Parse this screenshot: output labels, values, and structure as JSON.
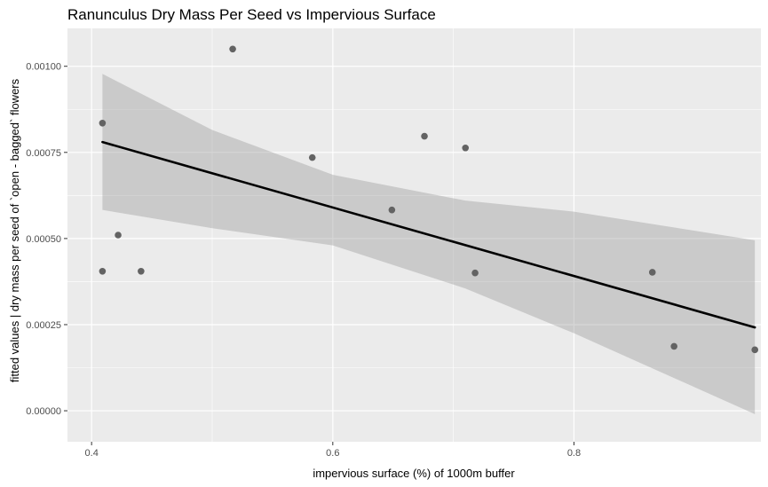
{
  "chart_data": {
    "type": "scatter",
    "title": "Ranunculus Dry Mass Per Seed vs Impervious Surface",
    "xlabel": "impervious surface (%) of 1000m buffer",
    "ylabel": "fitted values | dry mass per seed of `open - bagged` flowers",
    "x_ticks": [
      {
        "value": 0.4,
        "label": "0.4"
      },
      {
        "value": 0.6,
        "label": "0.6"
      },
      {
        "value": 0.8,
        "label": "0.8"
      }
    ],
    "y_ticks": [
      {
        "value": 0.0,
        "label": "0.00000"
      },
      {
        "value": 0.00025,
        "label": "0.00025"
      },
      {
        "value": 0.0005,
        "label": "0.00050"
      },
      {
        "value": 0.00075,
        "label": "0.00075"
      },
      {
        "value": 0.001,
        "label": "0.00100"
      }
    ],
    "xlim": [
      0.38,
      0.955
    ],
    "ylim": [
      -9e-05,
      0.00111
    ],
    "grid": true,
    "points": [
      {
        "x": 0.409,
        "y": 0.000835
      },
      {
        "x": 0.409,
        "y": 0.000405
      },
      {
        "x": 0.422,
        "y": 0.00051
      },
      {
        "x": 0.441,
        "y": 0.000405
      },
      {
        "x": 0.517,
        "y": 0.00105
      },
      {
        "x": 0.583,
        "y": 0.000735
      },
      {
        "x": 0.649,
        "y": 0.000583
      },
      {
        "x": 0.676,
        "y": 0.000797
      },
      {
        "x": 0.71,
        "y": 0.000763
      },
      {
        "x": 0.718,
        "y": 0.0004
      },
      {
        "x": 0.865,
        "y": 0.000402
      },
      {
        "x": 0.883,
        "y": 0.000187
      },
      {
        "x": 0.95,
        "y": 0.000177
      }
    ],
    "fit_line": {
      "x": [
        0.409,
        0.95
      ],
      "y": [
        0.00078,
        0.000242
      ]
    },
    "confidence_band": {
      "x": [
        0.409,
        0.5,
        0.6,
        0.71,
        0.8,
        0.95
      ],
      "upper": [
        0.000978,
        0.000815,
        0.000685,
        0.00061,
        0.000578,
        0.000495
      ],
      "lower": [
        0.000583,
        0.00053,
        0.00048,
        0.000355,
        0.000225,
        -1e-05
      ]
    },
    "colors": {
      "panel_background": "#ebebeb",
      "grid": "#ffffff",
      "point": "#636363",
      "fit_line": "#000000",
      "ribbon": "#cfcfcf"
    }
  }
}
